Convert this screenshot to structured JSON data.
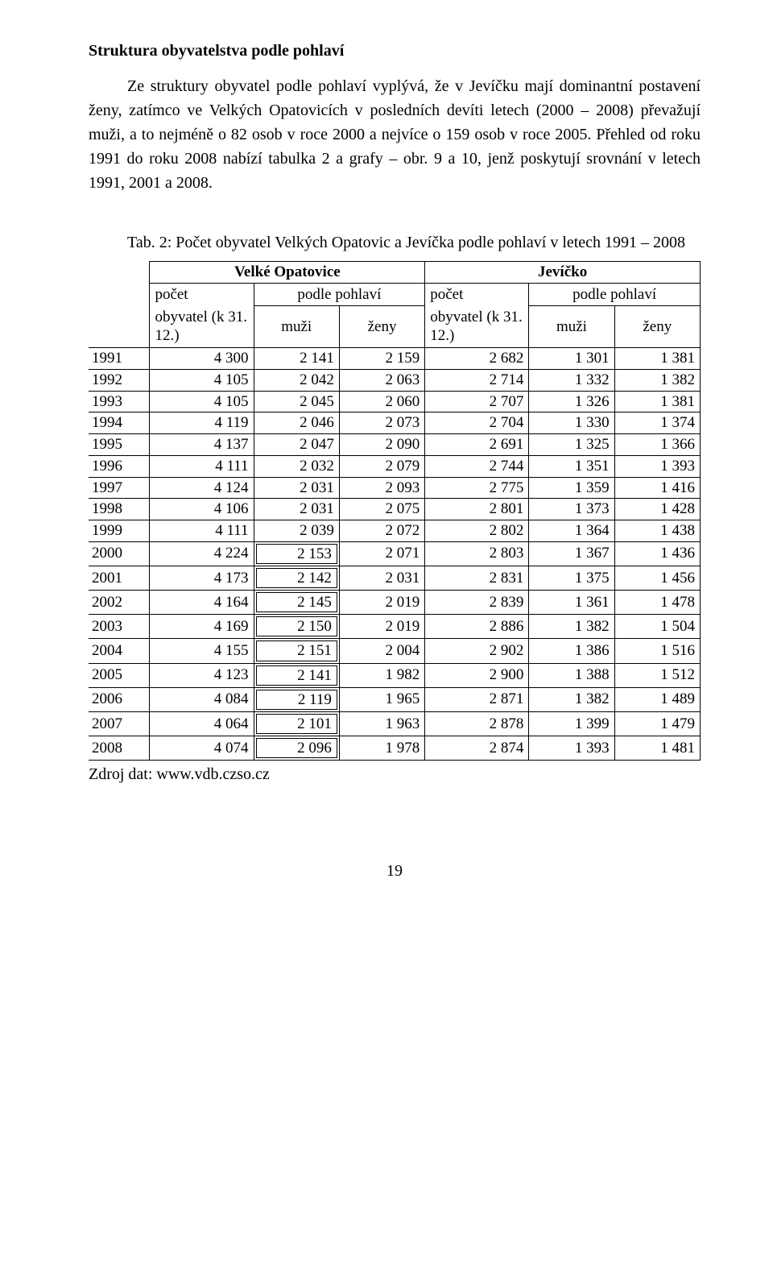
{
  "heading": "Struktura obyvatelstva podle pohlaví",
  "paragraph": "Ze struktury obyvatel podle pohlaví vyplývá, že v Jevíčku mají dominantní postavení ženy, zatímco ve Velkých Opatovicích v posledních devíti letech (2000 – 2008) převažují muži, a to nejméně o 82 osob v roce 2000 a nejvíce o 159 osob v roce 2005. Přehled od roku 1991 do roku 2008 nabízí tabulka 2 a grafy – obr. 9 a 10, jenž poskytují srovnání v letech 1991, 2001 a 2008.",
  "caption": "Tab. 2: Počet obyvatel Velkých Opatovic a Jevíčka podle pohlaví v letech 1991 – 2008",
  "header": {
    "vo": "Velké Opatovice",
    "jev": "Jevíčko",
    "pocet1": "počet",
    "pocet2": "počet",
    "podle1": "podle pohlaví",
    "podle2": "podle pohlaví",
    "obyv1": "obyvatel\n(k 31. 12.)",
    "obyv2": "obyvatel\n(k 31. 12.)",
    "muzi1": "muži",
    "zeny1": "ženy",
    "muzi2": "muži",
    "zeny2": "ženy"
  },
  "boxedFromYear": 2000,
  "columns": {
    "widths_pct": [
      10,
      17,
      14,
      14,
      17,
      14,
      14
    ]
  },
  "rows": [
    {
      "year": "1991",
      "vo_tot": "4 300",
      "vo_m": "2 141",
      "vo_z": "2 159",
      "j_tot": "2 682",
      "j_m": "1 301",
      "j_z": "1 381"
    },
    {
      "year": "1992",
      "vo_tot": "4 105",
      "vo_m": "2 042",
      "vo_z": "2 063",
      "j_tot": "2 714",
      "j_m": "1 332",
      "j_z": "1 382"
    },
    {
      "year": "1993",
      "vo_tot": "4 105",
      "vo_m": "2 045",
      "vo_z": "2 060",
      "j_tot": "2 707",
      "j_m": "1 326",
      "j_z": "1 381"
    },
    {
      "year": "1994",
      "vo_tot": "4 119",
      "vo_m": "2 046",
      "vo_z": "2 073",
      "j_tot": "2 704",
      "j_m": "1 330",
      "j_z": "1 374"
    },
    {
      "year": "1995",
      "vo_tot": "4 137",
      "vo_m": "2 047",
      "vo_z": "2 090",
      "j_tot": "2 691",
      "j_m": "1 325",
      "j_z": "1 366"
    },
    {
      "year": "1996",
      "vo_tot": "4 111",
      "vo_m": "2 032",
      "vo_z": "2 079",
      "j_tot": "2 744",
      "j_m": "1 351",
      "j_z": "1 393"
    },
    {
      "year": "1997",
      "vo_tot": "4 124",
      "vo_m": "2 031",
      "vo_z": "2 093",
      "j_tot": "2 775",
      "j_m": "1 359",
      "j_z": "1 416"
    },
    {
      "year": "1998",
      "vo_tot": "4 106",
      "vo_m": "2 031",
      "vo_z": "2 075",
      "j_tot": "2 801",
      "j_m": "1 373",
      "j_z": "1 428"
    },
    {
      "year": "1999",
      "vo_tot": "4 111",
      "vo_m": "2 039",
      "vo_z": "2 072",
      "j_tot": "2 802",
      "j_m": "1 364",
      "j_z": "1 438"
    },
    {
      "year": "2000",
      "vo_tot": "4 224",
      "vo_m": "2 153",
      "vo_z": "2 071",
      "j_tot": "2 803",
      "j_m": "1 367",
      "j_z": "1 436"
    },
    {
      "year": "2001",
      "vo_tot": "4 173",
      "vo_m": "2 142",
      "vo_z": "2 031",
      "j_tot": "2 831",
      "j_m": "1 375",
      "j_z": "1 456"
    },
    {
      "year": "2002",
      "vo_tot": "4 164",
      "vo_m": "2 145",
      "vo_z": "2 019",
      "j_tot": "2 839",
      "j_m": "1 361",
      "j_z": "1 478"
    },
    {
      "year": "2003",
      "vo_tot": "4 169",
      "vo_m": "2 150",
      "vo_z": "2 019",
      "j_tot": "2 886",
      "j_m": "1 382",
      "j_z": "1 504"
    },
    {
      "year": "2004",
      "vo_tot": "4 155",
      "vo_m": "2 151",
      "vo_z": "2 004",
      "j_tot": "2 902",
      "j_m": "1 386",
      "j_z": "1 516"
    },
    {
      "year": "2005",
      "vo_tot": "4 123",
      "vo_m": "2 141",
      "vo_z": "1 982",
      "j_tot": "2 900",
      "j_m": "1 388",
      "j_z": "1 512"
    },
    {
      "year": "2006",
      "vo_tot": "4 084",
      "vo_m": "2 119",
      "vo_z": "1 965",
      "j_tot": "2 871",
      "j_m": "1 382",
      "j_z": "1 489"
    },
    {
      "year": "2007",
      "vo_tot": "4 064",
      "vo_m": "2 101",
      "vo_z": "1 963",
      "j_tot": "2 878",
      "j_m": "1 399",
      "j_z": "1 479"
    },
    {
      "year": "2008",
      "vo_tot": "4 074",
      "vo_m": "2 096",
      "vo_z": "1 978",
      "j_tot": "2 874",
      "j_m": "1 393",
      "j_z": "1 481"
    }
  ],
  "source": "Zdroj dat: www.vdb.czso.cz",
  "pageNumber": "19"
}
